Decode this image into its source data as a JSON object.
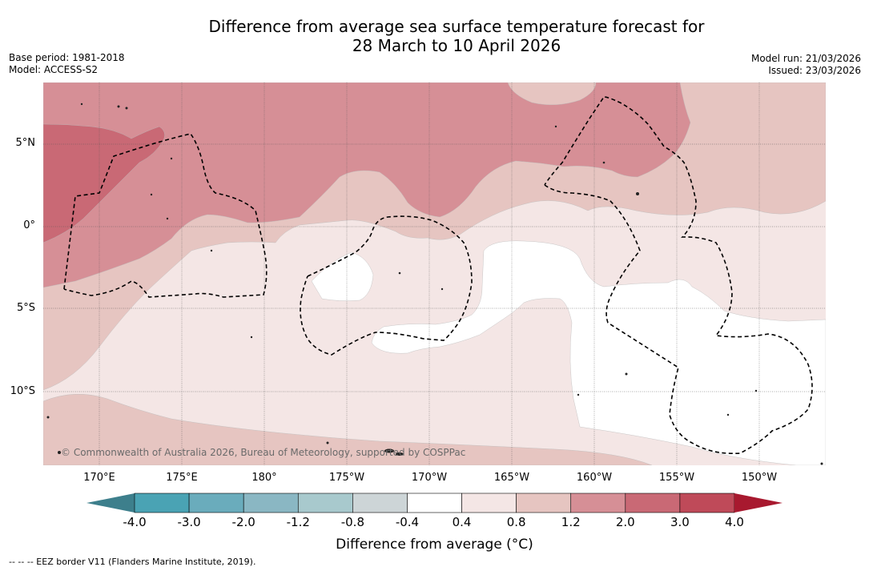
{
  "title": {
    "line1": "Difference from average sea surface temperature forecast for",
    "line2": "28 March to 10 April 2026"
  },
  "meta": {
    "base_period": "Base period: 1981-2018",
    "model": "Model: ACCESS-S2",
    "model_run": "Model run: 21/03/2026",
    "issued": "Issued: 23/03/2026"
  },
  "map": {
    "lat_labels": [
      "5°N",
      "0°",
      "5°S",
      "10°S"
    ],
    "lon_labels": [
      "170°E",
      "175°E",
      "180°",
      "175°W",
      "170°W",
      "165°W",
      "160°W",
      "155°W",
      "150°W"
    ],
    "copyright": "© Commonwealth of Australia 2026, Bureau of Meteorology, supported by COSPPac"
  },
  "colorbar": {
    "ticks": [
      "-4.0",
      "-3.0",
      "-2.0",
      "-1.2",
      "-0.8",
      "-0.4",
      "0.4",
      "0.8",
      "1.2",
      "2.0",
      "3.0",
      "4.0"
    ],
    "colors": {
      "below_min": "#3d7f8c",
      "bins": [
        "#4aa3b4",
        "#6aacbc",
        "#8ab7c3",
        "#a8c9cd",
        "#cdd5d7",
        "#ffffff",
        "#f4e6e5",
        "#e6c5c1",
        "#d68f96",
        "#c96975",
        "#bf4a59"
      ],
      "above_max": "#a8192f"
    },
    "label": "Difference from average (°C)"
  },
  "footer": "-- -- -- EEZ border V11 (Flanders Marine Institute, 2019)."
}
